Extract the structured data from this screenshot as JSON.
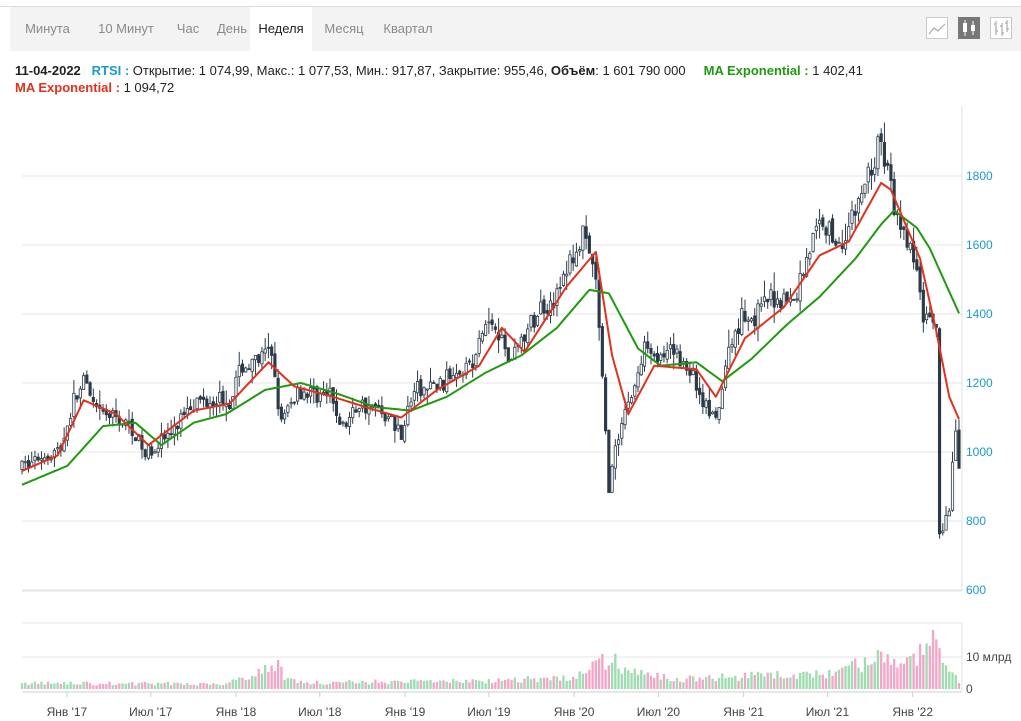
{
  "tabs": [
    {
      "label": "Минута",
      "active": false
    },
    {
      "label": "10 Минут",
      "active": false
    },
    {
      "label": "Час",
      "active": false
    },
    {
      "label": "День",
      "active": false
    },
    {
      "label": "Неделя",
      "active": true
    },
    {
      "label": "Месяц",
      "active": false
    },
    {
      "label": "Квартал",
      "active": false
    }
  ],
  "tools": [
    {
      "icon": "line-chart-icon",
      "active": false
    },
    {
      "icon": "candlestick-icon",
      "active": true
    },
    {
      "icon": "ohlc-bars-icon",
      "active": false
    }
  ],
  "info": {
    "date": "11-04-2022",
    "symbol": "RTSI :",
    "ohlc": " Открытие: 1 074,99, Макс.: 1 077,53, Мин.: 917,87, Закрытие: 955,46, ",
    "volume_label": "Объём",
    "volume_value": ": 1 601 790 000",
    "ma1_label": "MA Exponential :",
    "ma1_value": " 1 402,41",
    "ma2_label": "MA Exponential :",
    "ma2_value": " 1 094,72"
  },
  "chart_data": {
    "type": "candlestick",
    "ylim": [
      600,
      1950
    ],
    "y_ticks": [
      600,
      800,
      1000,
      1200,
      1400,
      1600,
      1800
    ],
    "x_ticks": [
      "Янв '17",
      "Июл '17",
      "Янв '18",
      "Июл '18",
      "Янв '19",
      "Июл '19",
      "Янв '20",
      "Июл '20",
      "Янв '21",
      "Июл '21",
      "Янв '22"
    ],
    "x_tick_dates": [
      "2017-01-01",
      "2017-07-01",
      "2018-01-01",
      "2018-07-01",
      "2019-01-01",
      "2019-07-01",
      "2020-01-01",
      "2020-07-01",
      "2021-01-01",
      "2021-07-01",
      "2022-01-01"
    ],
    "x_start": "2016-09-26",
    "x_end": "2022-04-11",
    "volume_ticks": [
      "0",
      "10 млрд"
    ],
    "volume_max": 16,
    "colors": {
      "up": "#9fdcb2",
      "down": "#f4a6c8",
      "wick": "#2b3a48",
      "ma_long": "#1f9a0f",
      "ma_short": "#e0321d",
      "axis_text": "#1a9ad1"
    },
    "anchors": [
      [
        "2016-09-26",
        955
      ],
      [
        "2016-11-07",
        990
      ],
      [
        "2016-12-19",
        1010
      ],
      [
        "2017-01-16",
        1150
      ],
      [
        "2017-02-06",
        1200
      ],
      [
        "2017-03-06",
        1110
      ],
      [
        "2017-04-17",
        1100
      ],
      [
        "2017-05-22",
        1070
      ],
      [
        "2017-06-19",
        990
      ],
      [
        "2017-07-17",
        1030
      ],
      [
        "2017-08-21",
        1060
      ],
      [
        "2017-09-18",
        1140
      ],
      [
        "2017-10-23",
        1150
      ],
      [
        "2017-11-20",
        1160
      ],
      [
        "2017-12-18",
        1150
      ],
      [
        "2018-01-15",
        1250
      ],
      [
        "2018-02-05",
        1250
      ],
      [
        "2018-03-19",
        1290
      ],
      [
        "2018-04-09",
        1080
      ],
      [
        "2018-05-14",
        1180
      ],
      [
        "2018-06-18",
        1170
      ],
      [
        "2018-07-23",
        1160
      ],
      [
        "2018-08-20",
        1070
      ],
      [
        "2018-09-24",
        1140
      ],
      [
        "2018-10-22",
        1130
      ],
      [
        "2018-11-19",
        1110
      ],
      [
        "2018-12-24",
        1060
      ],
      [
        "2019-01-21",
        1180
      ],
      [
        "2019-02-18",
        1180
      ],
      [
        "2019-03-25",
        1200
      ],
      [
        "2019-04-22",
        1250
      ],
      [
        "2019-05-27",
        1250
      ],
      [
        "2019-06-24",
        1370
      ],
      [
        "2019-07-15",
        1380
      ],
      [
        "2019-08-12",
        1270
      ],
      [
        "2019-09-23",
        1350
      ],
      [
        "2019-10-21",
        1420
      ],
      [
        "2019-11-25",
        1450
      ],
      [
        "2019-12-23",
        1550
      ],
      [
        "2020-01-20",
        1620
      ],
      [
        "2020-02-17",
        1500
      ],
      [
        "2020-03-16",
        900
      ],
      [
        "2020-04-13",
        1100
      ],
      [
        "2020-05-11",
        1190
      ],
      [
        "2020-06-08",
        1330
      ],
      [
        "2020-07-06",
        1260
      ],
      [
        "2020-08-03",
        1290
      ],
      [
        "2020-09-07",
        1240
      ],
      [
        "2020-10-05",
        1150
      ],
      [
        "2020-11-02",
        1080
      ],
      [
        "2020-11-30",
        1290
      ],
      [
        "2020-12-28",
        1400
      ],
      [
        "2021-01-25",
        1390
      ],
      [
        "2021-02-22",
        1440
      ],
      [
        "2021-03-22",
        1450
      ],
      [
        "2021-04-19",
        1430
      ],
      [
        "2021-05-17",
        1570
      ],
      [
        "2021-06-21",
        1680
      ],
      [
        "2021-07-19",
        1600
      ],
      [
        "2021-08-16",
        1650
      ],
      [
        "2021-09-13",
        1750
      ],
      [
        "2021-10-25",
        1900
      ],
      [
        "2021-11-15",
        1760
      ],
      [
        "2021-12-06",
        1620
      ],
      [
        "2021-12-27",
        1600
      ],
      [
        "2022-01-24",
        1400
      ],
      [
        "2022-02-21",
        1390
      ],
      [
        "2022-02-28",
        760
      ],
      [
        "2022-03-21",
        830
      ],
      [
        "2022-04-04",
        1070
      ],
      [
        "2022-04-11",
        955
      ]
    ],
    "ma_long_anchors": [
      [
        "2016-09-26",
        905
      ],
      [
        "2017-01-02",
        960
      ],
      [
        "2017-03-20",
        1075
      ],
      [
        "2017-05-29",
        1085
      ],
      [
        "2017-07-24",
        1020
      ],
      [
        "2017-10-02",
        1085
      ],
      [
        "2017-12-11",
        1110
      ],
      [
        "2018-03-05",
        1180
      ],
      [
        "2018-05-21",
        1200
      ],
      [
        "2018-08-06",
        1170
      ],
      [
        "2018-10-29",
        1130
      ],
      [
        "2019-01-14",
        1120
      ],
      [
        "2019-04-01",
        1160
      ],
      [
        "2019-06-24",
        1230
      ],
      [
        "2019-09-09",
        1280
      ],
      [
        "2019-11-25",
        1360
      ],
      [
        "2020-02-03",
        1470
      ],
      [
        "2020-03-16",
        1460
      ],
      [
        "2020-05-18",
        1300
      ],
      [
        "2020-07-06",
        1250
      ],
      [
        "2020-09-21",
        1260
      ],
      [
        "2020-11-16",
        1205
      ],
      [
        "2021-01-18",
        1270
      ],
      [
        "2021-04-05",
        1370
      ],
      [
        "2021-06-14",
        1450
      ],
      [
        "2021-08-30",
        1560
      ],
      [
        "2021-10-25",
        1660
      ],
      [
        "2021-11-22",
        1700
      ],
      [
        "2022-01-10",
        1650
      ],
      [
        "2022-02-07",
        1590
      ],
      [
        "2022-04-11",
        1402
      ]
    ],
    "ma_short_anchors": [
      [
        "2016-09-26",
        945
      ],
      [
        "2016-12-12",
        990
      ],
      [
        "2017-02-06",
        1150
      ],
      [
        "2017-04-17",
        1110
      ],
      [
        "2017-06-26",
        1020
      ],
      [
        "2017-10-02",
        1120
      ],
      [
        "2017-12-18",
        1140
      ],
      [
        "2018-03-12",
        1260
      ],
      [
        "2018-05-07",
        1190
      ],
      [
        "2018-07-30",
        1160
      ],
      [
        "2018-10-08",
        1130
      ],
      [
        "2018-12-24",
        1100
      ],
      [
        "2019-03-11",
        1180
      ],
      [
        "2019-06-10",
        1250
      ],
      [
        "2019-07-29",
        1360
      ],
      [
        "2019-09-16",
        1290
      ],
      [
        "2019-12-16",
        1480
      ],
      [
        "2020-02-17",
        1580
      ],
      [
        "2020-03-23",
        1280
      ],
      [
        "2020-04-27",
        1110
      ],
      [
        "2020-06-22",
        1250
      ],
      [
        "2020-09-21",
        1240
      ],
      [
        "2020-11-02",
        1160
      ],
      [
        "2021-01-04",
        1330
      ],
      [
        "2021-03-29",
        1420
      ],
      [
        "2021-06-14",
        1570
      ],
      [
        "2021-08-16",
        1610
      ],
      [
        "2021-10-25",
        1780
      ],
      [
        "2021-11-15",
        1760
      ],
      [
        "2022-01-17",
        1560
      ],
      [
        "2022-02-21",
        1350
      ],
      [
        "2022-03-21",
        1160
      ],
      [
        "2022-04-11",
        1095
      ]
    ],
    "volume_anchors": [
      [
        "2016-09-26",
        1.8
      ],
      [
        "2017-12-01",
        1.6
      ],
      [
        "2018-04-09",
        7.6
      ],
      [
        "2018-04-16",
        3.5
      ],
      [
        "2018-06-01",
        2.0
      ],
      [
        "2019-06-01",
        2.5
      ],
      [
        "2020-01-01",
        3.5
      ],
      [
        "2020-03-16",
        9.5
      ],
      [
        "2020-05-01",
        5.5
      ],
      [
        "2020-08-01",
        3.0
      ],
      [
        "2021-01-01",
        4.0
      ],
      [
        "2021-07-01",
        4.5
      ],
      [
        "2021-10-25",
        9.5
      ],
      [
        "2021-12-13",
        7.0
      ],
      [
        "2022-01-24",
        12.0
      ],
      [
        "2022-02-21",
        15.5
      ],
      [
        "2022-03-07",
        8.0
      ],
      [
        "2022-04-11",
        2.5
      ]
    ]
  }
}
